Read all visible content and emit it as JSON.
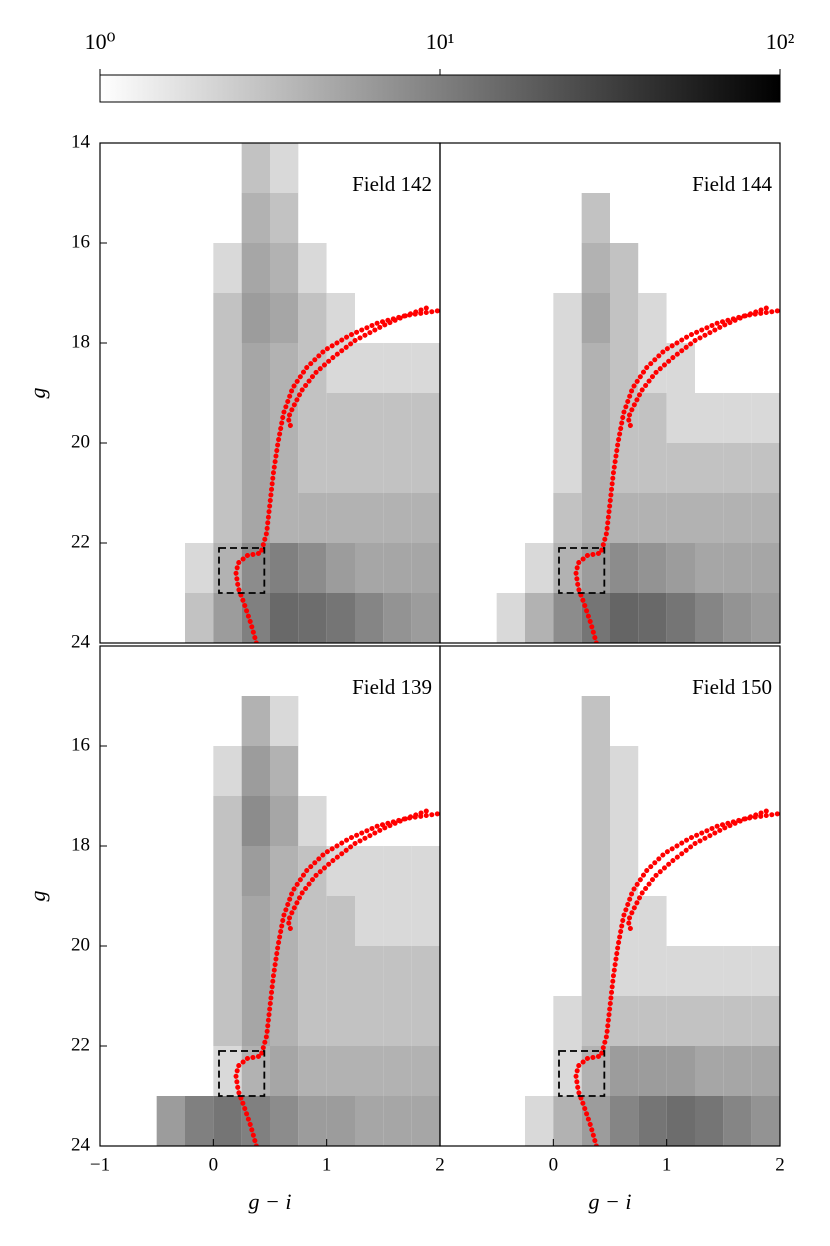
{
  "chart_data": [
    {
      "type": "colorbar",
      "clim": [
        1,
        100
      ],
      "log": true,
      "cmap": [
        "#ffffff",
        "#000000"
      ],
      "ticks": [
        {
          "value": 1,
          "label": "10⁰"
        },
        {
          "value": 10,
          "label": "10¹"
        },
        {
          "value": 100,
          "label": "10²"
        }
      ]
    },
    {
      "type": "hess",
      "title": "Field 142",
      "xlim": [
        -1,
        2
      ],
      "ylim": [
        24,
        14
      ],
      "ylabel": "g",
      "yticks": [
        14,
        16,
        18,
        20,
        22,
        24
      ],
      "xbins": [
        -1,
        -0.75,
        -0.5,
        -0.25,
        0,
        0.25,
        0.5,
        0.75,
        1,
        1.25,
        1.5,
        1.75,
        2
      ],
      "ybins": [
        14,
        15,
        16,
        17,
        18,
        19,
        20,
        21,
        22,
        23,
        24
      ],
      "counts": [
        [
          0,
          0,
          0,
          0,
          0,
          3,
          2,
          0,
          0,
          0,
          0,
          0
        ],
        [
          0,
          0,
          0,
          0,
          1,
          4,
          3,
          1,
          0,
          0,
          0,
          0
        ],
        [
          0,
          0,
          0,
          0,
          2,
          5,
          4,
          2,
          1,
          1,
          0,
          0
        ],
        [
          0,
          0,
          0,
          0,
          3,
          6,
          5,
          3,
          2,
          1,
          1,
          1
        ],
        [
          0,
          0,
          0,
          0,
          3,
          5,
          4,
          3,
          2,
          2,
          2,
          2
        ],
        [
          0,
          0,
          0,
          1,
          3,
          5,
          4,
          3,
          3,
          3,
          3,
          3
        ],
        [
          0,
          0,
          0,
          1,
          3,
          5,
          4,
          3,
          3,
          3,
          3,
          3
        ],
        [
          0,
          0,
          0,
          1,
          3,
          5,
          4,
          4,
          4,
          4,
          4,
          4
        ],
        [
          0,
          0,
          0,
          2,
          4,
          8,
          10,
          8,
          6,
          5,
          5,
          5
        ],
        [
          0,
          0,
          1,
          3,
          6,
          10,
          15,
          14,
          12,
          9,
          7,
          6
        ]
      ],
      "series": [
        {
          "color": "#ff0000",
          "x": [
            0.38,
            0.33,
            0.27,
            0.22,
            0.2,
            0.22,
            0.3,
            0.42,
            0.47,
            0.5,
            0.53,
            0.57,
            0.62,
            0.7,
            0.82,
            0.98,
            1.2,
            1.45,
            1.7,
            2.0
          ],
          "values": [
            24,
            23.6,
            23.2,
            22.9,
            22.6,
            22.4,
            22.25,
            22.2,
            21.8,
            21.2,
            20.6,
            20.0,
            19.4,
            18.9,
            18.5,
            18.15,
            17.85,
            17.6,
            17.45,
            17.35
          ]
        },
        {
          "color": "#ff0000",
          "x": [
            0.68,
            0.66,
            0.7,
            0.78,
            0.9,
            1.05,
            1.25,
            1.5,
            1.7,
            1.88
          ],
          "values": [
            19.65,
            19.5,
            19.3,
            18.95,
            18.6,
            18.3,
            17.95,
            17.65,
            17.45,
            17.3
          ]
        }
      ],
      "box": {
        "x": [
          0.05,
          0.45
        ],
        "y": [
          22.1,
          23.0
        ]
      }
    },
    {
      "type": "hess",
      "title": "Field 144",
      "xlim": [
        -1,
        2
      ],
      "ylim": [
        24,
        14
      ],
      "xbins": [
        -1,
        -0.75,
        -0.5,
        -0.25,
        0,
        0.25,
        0.5,
        0.75,
        1,
        1.25,
        1.5,
        1.75,
        2
      ],
      "ybins": [
        14,
        15,
        16,
        17,
        18,
        19,
        20,
        21,
        22,
        23,
        24
      ],
      "counts": [
        [
          0,
          0,
          0,
          0,
          0,
          0,
          0,
          0,
          0,
          0,
          0,
          0
        ],
        [
          0,
          0,
          0,
          0,
          0,
          3,
          1,
          0,
          0,
          0,
          0,
          0
        ],
        [
          0,
          0,
          0,
          0,
          1,
          4,
          3,
          1,
          0,
          0,
          0,
          0
        ],
        [
          0,
          0,
          0,
          0,
          2,
          5,
          3,
          2,
          1,
          1,
          0,
          0
        ],
        [
          0,
          0,
          0,
          0,
          2,
          4,
          3,
          2,
          2,
          1,
          1,
          1
        ],
        [
          0,
          0,
          0,
          0,
          2,
          4,
          3,
          3,
          2,
          2,
          2,
          2
        ],
        [
          0,
          0,
          0,
          1,
          2,
          4,
          3,
          3,
          3,
          3,
          3,
          3
        ],
        [
          0,
          0,
          0,
          1,
          3,
          4,
          4,
          4,
          4,
          4,
          4,
          4
        ],
        [
          0,
          0,
          0,
          2,
          4,
          6,
          8,
          7,
          6,
          5,
          5,
          5
        ],
        [
          0,
          0,
          2,
          4,
          8,
          12,
          16,
          15,
          12,
          9,
          7,
          6
        ]
      ],
      "series": [
        {
          "color": "#ff0000",
          "x": [
            0.38,
            0.33,
            0.27,
            0.22,
            0.2,
            0.22,
            0.3,
            0.42,
            0.47,
            0.5,
            0.53,
            0.57,
            0.62,
            0.7,
            0.82,
            0.98,
            1.2,
            1.45,
            1.7,
            2.0
          ],
          "values": [
            24,
            23.6,
            23.2,
            22.9,
            22.6,
            22.4,
            22.25,
            22.2,
            21.8,
            21.2,
            20.6,
            20.0,
            19.4,
            18.9,
            18.5,
            18.15,
            17.85,
            17.6,
            17.45,
            17.35
          ]
        },
        {
          "color": "#ff0000",
          "x": [
            0.68,
            0.66,
            0.7,
            0.78,
            0.9,
            1.05,
            1.25,
            1.5,
            1.7,
            1.88
          ],
          "values": [
            19.65,
            19.5,
            19.3,
            18.95,
            18.6,
            18.3,
            17.95,
            17.65,
            17.45,
            17.3
          ]
        }
      ],
      "box": {
        "x": [
          0.05,
          0.45
        ],
        "y": [
          22.1,
          23.0
        ]
      }
    },
    {
      "type": "hess",
      "title": "Field 139",
      "xlim": [
        -1,
        2
      ],
      "ylim": [
        24,
        14
      ],
      "ylabel": "g",
      "xlabel": "g − i",
      "yticks": [
        16,
        18,
        20,
        22,
        24
      ],
      "xticks": [
        {
          "value": -1,
          "label": "−1"
        },
        0,
        1,
        2
      ],
      "xbins": [
        -1,
        -0.75,
        -0.5,
        -0.25,
        0,
        0.25,
        0.5,
        0.75,
        1,
        1.25,
        1.5,
        1.75,
        2
      ],
      "ybins": [
        14,
        15,
        16,
        17,
        18,
        19,
        20,
        21,
        22,
        23,
        24
      ],
      "counts": [
        [
          0,
          0,
          0,
          0,
          0,
          0,
          0,
          0,
          0,
          0,
          0,
          0
        ],
        [
          0,
          0,
          0,
          0,
          1,
          4,
          2,
          0,
          0,
          0,
          0,
          0
        ],
        [
          0,
          0,
          0,
          0,
          2,
          6,
          4,
          1,
          1,
          0,
          0,
          0
        ],
        [
          0,
          0,
          0,
          0,
          3,
          8,
          5,
          2,
          1,
          1,
          1,
          1
        ],
        [
          0,
          0,
          0,
          0,
          3,
          6,
          4,
          3,
          2,
          2,
          2,
          2
        ],
        [
          0,
          0,
          0,
          0,
          3,
          5,
          4,
          3,
          3,
          2,
          2,
          2
        ],
        [
          0,
          0,
          0,
          1,
          3,
          5,
          4,
          3,
          3,
          3,
          3,
          3
        ],
        [
          0,
          0,
          0,
          1,
          3,
          5,
          4,
          3,
          3,
          3,
          3,
          3
        ],
        [
          0,
          0,
          0,
          1,
          2,
          4,
          5,
          4,
          4,
          4,
          4,
          4
        ],
        [
          0,
          0,
          6,
          10,
          12,
          10,
          8,
          6,
          6,
          5,
          5,
          5
        ]
      ],
      "series": [
        {
          "color": "#ff0000",
          "x": [
            0.38,
            0.33,
            0.27,
            0.22,
            0.2,
            0.22,
            0.3,
            0.42,
            0.47,
            0.5,
            0.53,
            0.57,
            0.62,
            0.7,
            0.82,
            0.98,
            1.2,
            1.45,
            1.7,
            2.0
          ],
          "values": [
            24,
            23.6,
            23.2,
            22.9,
            22.6,
            22.4,
            22.25,
            22.2,
            21.8,
            21.2,
            20.6,
            20.0,
            19.4,
            18.9,
            18.5,
            18.15,
            17.85,
            17.6,
            17.45,
            17.35
          ]
        },
        {
          "color": "#ff0000",
          "x": [
            0.68,
            0.66,
            0.7,
            0.78,
            0.9,
            1.05,
            1.25,
            1.5,
            1.7,
            1.88
          ],
          "values": [
            19.65,
            19.5,
            19.3,
            18.95,
            18.6,
            18.3,
            17.95,
            17.65,
            17.45,
            17.3
          ]
        }
      ],
      "box": {
        "x": [
          0.05,
          0.45
        ],
        "y": [
          22.1,
          23.0
        ]
      }
    },
    {
      "type": "hess",
      "title": "Field 150",
      "xlim": [
        -1,
        2
      ],
      "ylim": [
        24,
        14
      ],
      "xlabel": "g − i",
      "xticks": [
        0,
        1,
        2
      ],
      "xbins": [
        -1,
        -0.75,
        -0.5,
        -0.25,
        0,
        0.25,
        0.5,
        0.75,
        1,
        1.25,
        1.5,
        1.75,
        2
      ],
      "ybins": [
        14,
        15,
        16,
        17,
        18,
        19,
        20,
        21,
        22,
        23,
        24
      ],
      "counts": [
        [
          0,
          0,
          0,
          0,
          0,
          0,
          0,
          0,
          0,
          0,
          0,
          0
        ],
        [
          0,
          0,
          0,
          0,
          0,
          3,
          1,
          0,
          0,
          0,
          0,
          0
        ],
        [
          0,
          0,
          0,
          0,
          1,
          3,
          2,
          1,
          0,
          0,
          0,
          0
        ],
        [
          0,
          0,
          0,
          0,
          1,
          3,
          2,
          1,
          1,
          0,
          0,
          0
        ],
        [
          0,
          0,
          0,
          0,
          1,
          3,
          2,
          1,
          1,
          1,
          1,
          1
        ],
        [
          0,
          0,
          0,
          0,
          1,
          3,
          2,
          2,
          1,
          1,
          1,
          1
        ],
        [
          0,
          0,
          0,
          0,
          1,
          3,
          2,
          2,
          2,
          2,
          2,
          2
        ],
        [
          0,
          0,
          0,
          0,
          2,
          3,
          3,
          3,
          3,
          3,
          3,
          3
        ],
        [
          0,
          0,
          0,
          1,
          2,
          4,
          6,
          6,
          6,
          5,
          5,
          5
        ],
        [
          0,
          0,
          1,
          2,
          4,
          6,
          9,
          12,
          14,
          12,
          9,
          7
        ]
      ],
      "series": [
        {
          "color": "#ff0000",
          "x": [
            0.38,
            0.33,
            0.27,
            0.22,
            0.2,
            0.22,
            0.3,
            0.42,
            0.47,
            0.5,
            0.53,
            0.57,
            0.62,
            0.7,
            0.82,
            0.98,
            1.2,
            1.45,
            1.7,
            2.0
          ],
          "values": [
            24,
            23.6,
            23.2,
            22.9,
            22.6,
            22.4,
            22.25,
            22.2,
            21.8,
            21.2,
            20.6,
            20.0,
            19.4,
            18.9,
            18.5,
            18.15,
            17.85,
            17.6,
            17.45,
            17.35
          ]
        },
        {
          "color": "#ff0000",
          "x": [
            0.68,
            0.66,
            0.7,
            0.78,
            0.9,
            1.05,
            1.25,
            1.5,
            1.7,
            1.88
          ],
          "values": [
            19.65,
            19.5,
            19.3,
            18.95,
            18.6,
            18.3,
            17.95,
            17.65,
            17.45,
            17.3
          ]
        }
      ],
      "box": {
        "x": [
          0.05,
          0.45
        ],
        "y": [
          22.1,
          23.0
        ]
      }
    }
  ]
}
